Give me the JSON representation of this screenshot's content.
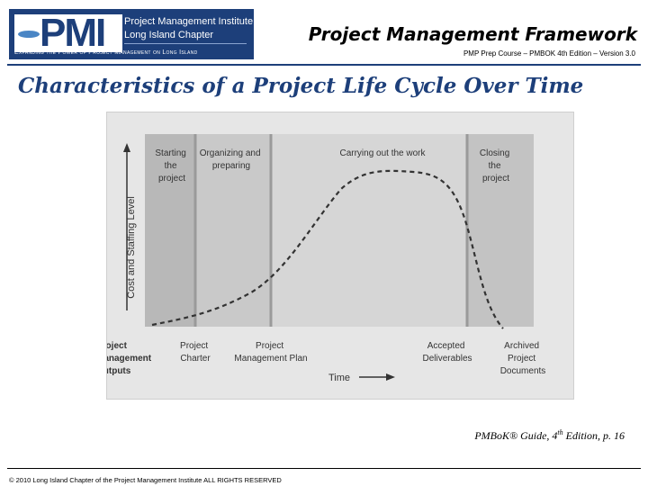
{
  "header": {
    "logo": {
      "line1": "Project Management Institute",
      "line2": "Long Island Chapter",
      "tagline": "Expanding the Power of Project Management on Long Island",
      "mark": "PMI"
    },
    "title": "Project Management Framework",
    "subtitle": "PMP Prep Course – PMBOK 4th Edition – Version 3.0"
  },
  "slide_title": "Characteristics of a Project Life Cycle Over Time",
  "diagram": {
    "phases": [
      {
        "label_lines": [
          "Starting",
          "the",
          "project"
        ]
      },
      {
        "label_lines": [
          "Organizing and",
          "preparing"
        ]
      },
      {
        "label_lines": [
          "Carrying out the work"
        ]
      },
      {
        "label_lines": [
          "Closing",
          "the",
          "project"
        ]
      }
    ],
    "y_axis_label": "Cost and Staffing Level",
    "x_axis_label": "Time",
    "outputs_heading": [
      "Project",
      "Management",
      "Outputs"
    ],
    "outputs": [
      {
        "label_lines": [
          "Project",
          "Charter"
        ]
      },
      {
        "label_lines": [
          "Project",
          "Management Plan"
        ]
      },
      {
        "label_lines": [
          "Accepted",
          "Deliverables"
        ]
      },
      {
        "label_lines": [
          "Archived",
          "Project",
          "Documents"
        ]
      }
    ]
  },
  "citation": {
    "prefix": "PMBoK® Guide, 4",
    "sup": "th",
    "suffix": " Edition, p. 16"
  },
  "footer": "© 2010 Long Island Chapter of the Project Management Institute  ALL RIGHTS RESERVED"
}
